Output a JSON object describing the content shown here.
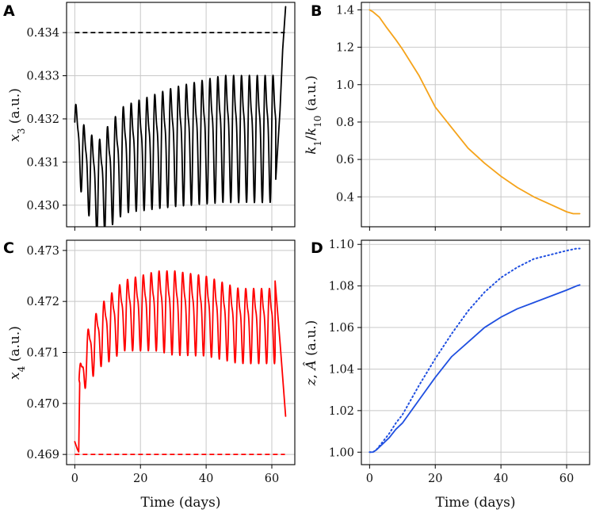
{
  "chart_data": [
    {
      "panel": "A",
      "type": "line",
      "title": "",
      "xlabel": "",
      "ylabel_parts": [
        {
          "text": "x",
          "italic": true
        },
        {
          "text": "3",
          "sub": true
        },
        {
          "text": " (a.u.)",
          "italic": false
        }
      ],
      "xlim": [
        -2.5,
        67
      ],
      "ylim": [
        0.4295,
        0.4347
      ],
      "xticks": [
        0,
        20,
        40,
        60
      ],
      "yticks": [
        0.43,
        0.431,
        0.432,
        0.433,
        0.434
      ],
      "ytick_labels": [
        "0.430",
        "0.431",
        "0.432",
        "0.433",
        "0.434"
      ],
      "xtick_labels_visible": false,
      "grid": true,
      "series": [
        {
          "name": "x3",
          "color": "#000000",
          "style": "solid",
          "kind": "oscillation",
          "samples": 960,
          "t_start": 0,
          "t_end": 61.2,
          "period": 2.4,
          "base": [
            [
              0,
              0.4318
            ],
            [
              0.5,
              0.4316
            ],
            [
              3,
              0.431
            ],
            [
              7,
              0.4305
            ],
            [
              15,
              0.4312
            ],
            [
              30,
              0.4315
            ],
            [
              45,
              0.4317
            ],
            [
              60,
              0.4317
            ]
          ],
          "amplitude": [
            [
              0,
              0.0008
            ],
            [
              3,
              0.001
            ],
            [
              10,
              0.0013
            ],
            [
              30,
              0.0015
            ],
            [
              45,
              0.0016
            ],
            [
              60,
              0.0016
            ]
          ],
          "tail": [
            [
              61.2,
              0.4306
            ],
            [
              62.5,
              0.4322
            ],
            [
              63.3,
              0.4336
            ],
            [
              64.2,
              0.4346
            ]
          ]
        },
        {
          "name": "threshold",
          "color": "#000000",
          "style": "dashed",
          "x": [
            0,
            64
          ],
          "y": [
            0.434,
            0.434
          ]
        }
      ]
    },
    {
      "panel": "B",
      "type": "line",
      "title": "",
      "xlabel": "",
      "ylabel_parts": [
        {
          "text": "k",
          "italic": true
        },
        {
          "text": "1",
          "sub": true
        },
        {
          "text": "/",
          "italic": false
        },
        {
          "text": "k",
          "italic": true
        },
        {
          "text": "10",
          "sub": true
        },
        {
          "text": " (a.u.)",
          "italic": false
        }
      ],
      "xlim": [
        -2.5,
        67
      ],
      "ylim": [
        0.24,
        1.44
      ],
      "xticks": [
        0,
        20,
        40,
        60
      ],
      "yticks": [
        0.4,
        0.6,
        0.8,
        1.0,
        1.2,
        1.4
      ],
      "ytick_labels": [
        "0.4",
        "0.6",
        "0.8",
        "1.0",
        "1.2",
        "1.4"
      ],
      "xtick_labels_visible": false,
      "grid": true,
      "series": [
        {
          "name": "k1/k10",
          "color": "#f5a31a",
          "style": "solid",
          "x": [
            0,
            1,
            3,
            5,
            8,
            10,
            15,
            20,
            25,
            30,
            35,
            40,
            45,
            50,
            55,
            60,
            62,
            64
          ],
          "y": [
            1.4,
            1.39,
            1.36,
            1.31,
            1.24,
            1.19,
            1.05,
            0.88,
            0.77,
            0.66,
            0.58,
            0.51,
            0.45,
            0.4,
            0.36,
            0.32,
            0.31,
            0.31
          ]
        }
      ]
    },
    {
      "panel": "C",
      "type": "line",
      "title": "",
      "xlabel": "Time (days)",
      "ylabel_parts": [
        {
          "text": "x",
          "italic": true
        },
        {
          "text": "4",
          "sub": true
        },
        {
          "text": " (a.u.)",
          "italic": false
        }
      ],
      "xlim": [
        -2.5,
        67
      ],
      "ylim": [
        0.4688,
        0.4732
      ],
      "xticks": [
        0,
        20,
        40,
        60
      ],
      "xtick_labels": [
        "0",
        "20",
        "40",
        "60"
      ],
      "yticks": [
        0.469,
        0.47,
        0.471,
        0.472,
        0.473
      ],
      "ytick_labels": [
        "0.469",
        "0.470",
        "0.471",
        "0.472",
        "0.473"
      ],
      "xtick_labels_visible": true,
      "grid": true,
      "series": [
        {
          "name": "x4",
          "color": "#ff0000",
          "style": "solid",
          "kind": "oscillation",
          "samples": 960,
          "t_start": 1.3,
          "t_end": 61.0,
          "period": 2.4,
          "head": [
            [
              0,
              0.46925
            ],
            [
              0.8,
              0.4691
            ],
            [
              1.2,
              0.46905
            ],
            [
              1.5,
              0.4704
            ]
          ],
          "base": [
            [
              1.5,
              0.4704
            ],
            [
              4,
              0.471
            ],
            [
              8,
              0.4714
            ],
            [
              15,
              0.4718
            ],
            [
              25,
              0.4719
            ],
            [
              40,
              0.4718
            ],
            [
              50,
              0.4716
            ],
            [
              61,
              0.4716
            ]
          ],
          "amplitude": [
            [
              1.5,
              0.0004
            ],
            [
              5,
              0.0006
            ],
            [
              10,
              0.0007
            ],
            [
              30,
              0.0009
            ],
            [
              50,
              0.0008
            ],
            [
              61,
              0.0008
            ]
          ],
          "tail": [
            [
              61.0,
              0.4724
            ],
            [
              62.5,
              0.4712
            ],
            [
              64.2,
              0.46975
            ]
          ]
        },
        {
          "name": "threshold",
          "color": "#ff0000",
          "style": "dashed",
          "x": [
            0,
            64
          ],
          "y": [
            0.469,
            0.469
          ]
        }
      ]
    },
    {
      "panel": "D",
      "type": "line",
      "title": "",
      "xlabel": "Time (days)",
      "ylabel_parts": [
        {
          "text": "z",
          "italic": true
        },
        {
          "text": ",  ",
          "italic": false
        },
        {
          "text": "Â",
          "italic": true
        },
        {
          "text": "  (a.u.)",
          "italic": false
        }
      ],
      "xlim": [
        -2.5,
        67
      ],
      "ylim": [
        0.994,
        1.102
      ],
      "xticks": [
        0,
        20,
        40,
        60
      ],
      "xtick_labels": [
        "0",
        "20",
        "40",
        "60"
      ],
      "yticks": [
        1.0,
        1.02,
        1.04,
        1.06,
        1.08,
        1.1
      ],
      "ytick_labels": [
        "1.00",
        "1.02",
        "1.04",
        "1.06",
        "1.08",
        "1.10"
      ],
      "xtick_labels_visible": true,
      "grid": true,
      "series": [
        {
          "name": "z",
          "color": "#1f4fe0",
          "style": "solid",
          "x": [
            0,
            1,
            2,
            4,
            6,
            8,
            10,
            15,
            20,
            25,
            30,
            35,
            40,
            45,
            50,
            55,
            60,
            63,
            64
          ],
          "y": [
            1.0,
            1.0,
            1.001,
            1.004,
            1.007,
            1.011,
            1.014,
            1.025,
            1.036,
            1.046,
            1.053,
            1.06,
            1.065,
            1.069,
            1.072,
            1.075,
            1.078,
            1.08,
            1.0805
          ]
        },
        {
          "name": "A_hat",
          "color": "#1f4fe0",
          "style": "dotted",
          "x": [
            0,
            1,
            2,
            4,
            6,
            8,
            10,
            15,
            20,
            25,
            30,
            35,
            40,
            45,
            50,
            55,
            60,
            63,
            64
          ],
          "y": [
            1.0,
            1.0,
            1.001,
            1.005,
            1.009,
            1.014,
            1.018,
            1.032,
            1.045,
            1.057,
            1.068,
            1.077,
            1.084,
            1.089,
            1.093,
            1.095,
            1.097,
            1.098,
            1.098
          ]
        }
      ]
    }
  ]
}
